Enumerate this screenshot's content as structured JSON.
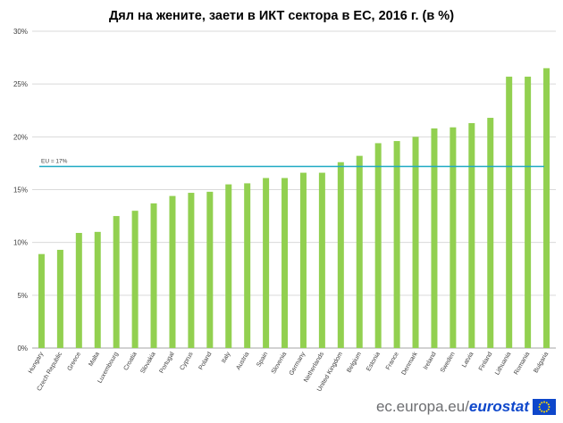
{
  "chart_data": {
    "type": "bar",
    "title": "Дял на жените, заети в ИКТ сектора в ЕС, 2016 г. (в %)",
    "xlabel": "",
    "ylabel": "",
    "ylim": [
      0,
      30
    ],
    "y_ticks": [
      "0%",
      "5%",
      "10%",
      "15%",
      "20%",
      "25%",
      "30%"
    ],
    "categories": [
      "Hungary",
      "Czech Republic",
      "Greece",
      "Malta",
      "Luxembourg",
      "Croatia",
      "Slovakia",
      "Portugal",
      "Cyprus",
      "Poland",
      "Italy",
      "Austria",
      "Spain",
      "Slovenia",
      "Germany",
      "Netherlands",
      "United Kingdom",
      "Belgium",
      "Estonia",
      "France",
      "Denmark",
      "Ireland",
      "Sweden",
      "Latvia",
      "Finland",
      "Lithuania",
      "Romania",
      "Bulgaria"
    ],
    "values": [
      8.9,
      9.3,
      10.9,
      11.0,
      12.5,
      13.0,
      13.7,
      14.4,
      14.7,
      14.8,
      15.5,
      15.6,
      16.1,
      16.1,
      16.6,
      16.6,
      17.6,
      18.2,
      19.4,
      19.6,
      20.0,
      20.8,
      20.9,
      21.3,
      21.8,
      25.7,
      25.7,
      26.5
    ],
    "reference_line": {
      "label": "EU = 17%",
      "value": 17.2
    },
    "grid": true,
    "colors": {
      "bar": "#92d050",
      "reference_line": "#1fa9c4",
      "grid": "#d9d9d9"
    }
  },
  "footer": {
    "site": "ec.europa.eu/",
    "brand": "eurostat"
  }
}
